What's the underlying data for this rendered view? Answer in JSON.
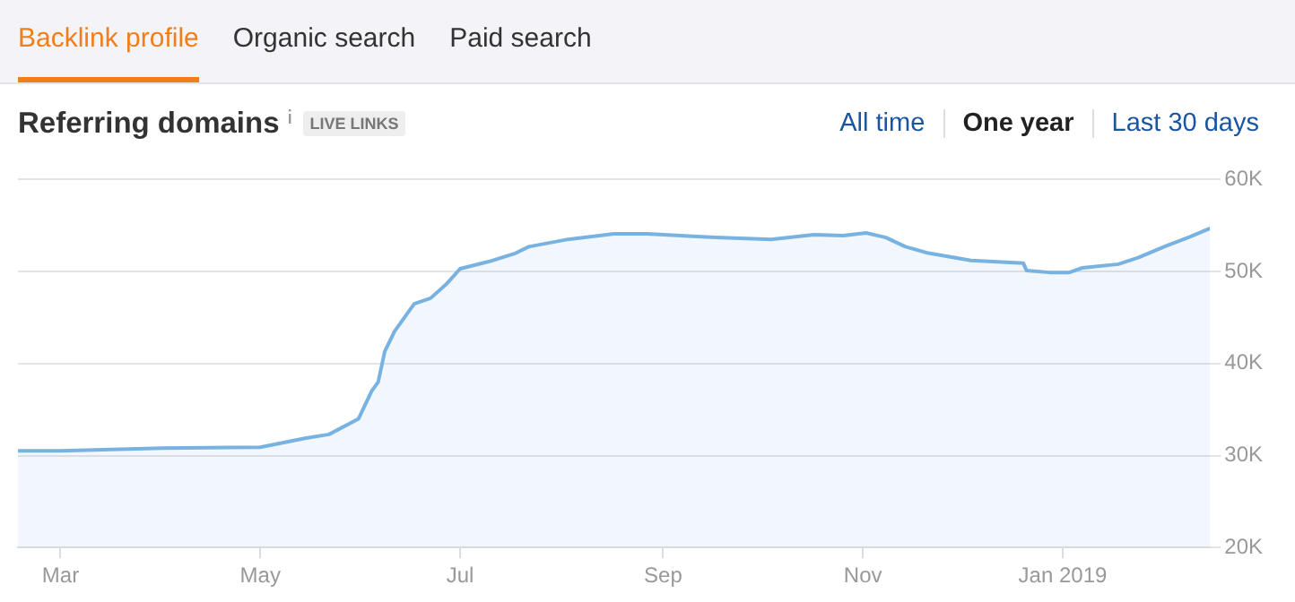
{
  "chart_data": {
    "type": "area",
    "title": "Referring domains",
    "annotations": [
      "Backlink profile",
      "Organic search",
      "Paid search",
      "LIVE LINKS",
      "All time",
      "One year",
      "Last 30 days"
    ],
    "x": [
      "2018-02-16",
      "2018-03-01",
      "2018-04-01",
      "2018-05-01",
      "2018-05-15",
      "2018-05-22",
      "2018-05-31",
      "2018-06-04",
      "2018-06-06",
      "2018-06-08",
      "2018-06-11",
      "2018-06-17",
      "2018-06-22",
      "2018-06-27",
      "2018-07-01",
      "2018-07-10",
      "2018-07-18",
      "2018-07-22",
      "2018-08-03",
      "2018-08-17",
      "2018-08-27",
      "2018-09-17",
      "2018-10-04",
      "2018-10-17",
      "2018-10-26",
      "2018-11-02",
      "2018-11-08",
      "2018-11-14",
      "2018-11-21",
      "2018-12-04",
      "2018-12-20",
      "2018-12-21",
      "2018-12-28",
      "2019-01-03",
      "2019-01-07",
      "2019-01-18",
      "2019-01-24",
      "2019-02-01",
      "2019-02-09",
      "2019-02-15"
    ],
    "series": [
      {
        "color": "#78b2e0",
        "values": [
          30500,
          30500,
          30800,
          30900,
          31900,
          32300,
          34000,
          37000,
          38000,
          41300,
          43500,
          46500,
          47100,
          48700,
          50300,
          51100,
          52000,
          52700,
          53500,
          54100,
          54100,
          53700,
          53500,
          54000,
          53900,
          54200,
          53700,
          52700,
          52000,
          51200,
          50900,
          50100,
          49900,
          49900,
          50400,
          50800,
          51500,
          52700,
          53800,
          54700
        ]
      }
    ],
    "xlim": [
      "2018-02-16",
      "2019-02-15"
    ],
    "xticks": [
      {
        "value": "2018-03-01",
        "label": "Mar"
      },
      {
        "value": "2018-05-01",
        "label": "May"
      },
      {
        "value": "2018-07-01",
        "label": "Jul"
      },
      {
        "value": "2018-09-01",
        "label": "Sep"
      },
      {
        "value": "2018-11-01",
        "label": "Nov"
      },
      {
        "value": "2019-01-01",
        "label": "Jan 2019"
      }
    ],
    "ylim": [
      20000,
      60000
    ],
    "yticks": [
      {
        "value": 20000,
        "label": "20K"
      },
      {
        "value": 30000,
        "label": "30K"
      },
      {
        "value": 40000,
        "label": "40K"
      },
      {
        "value": 50000,
        "label": "50K"
      },
      {
        "value": 60000,
        "label": "60K"
      }
    ],
    "grid": "y",
    "legend": false,
    "marker": "none",
    "line_style": "solid"
  }
}
